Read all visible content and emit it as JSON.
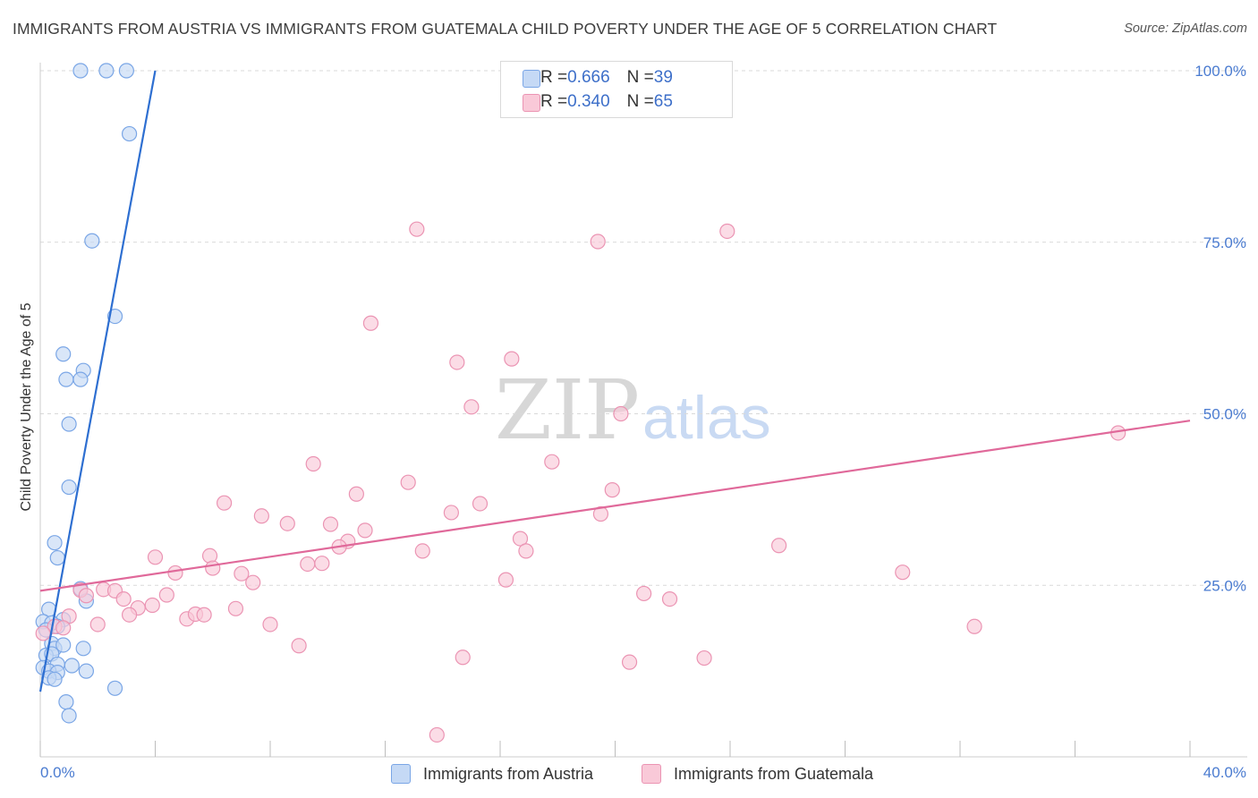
{
  "title": "IMMIGRANTS FROM AUSTRIA VS IMMIGRANTS FROM GUATEMALA CHILD POVERTY UNDER THE AGE OF 5 CORRELATION CHART",
  "source": "Source: ZipAtlas.com",
  "watermark": {
    "zip": "ZIP",
    "atlas": "atlas"
  },
  "legend": {
    "austria": {
      "r_label": "R = ",
      "r_value": "0.666",
      "n_label": "N = ",
      "n_value": "39"
    },
    "guatemala": {
      "r_label": "R = ",
      "r_value": "0.340",
      "n_label": "N = ",
      "n_value": "65"
    }
  },
  "colors": {
    "austria_fill": "#c5d9f5",
    "austria_stroke": "#7aa6e6",
    "austria_line": "#2e6fd1",
    "guatemala_fill": "#f9c9d8",
    "guatemala_stroke": "#eb94b3",
    "guatemala_line": "#e0699a",
    "tick": "#4a7bd0",
    "grid": "#d9d9d9"
  },
  "chart_data": {
    "type": "scatter",
    "title": "IMMIGRANTS FROM AUSTRIA VS IMMIGRANTS FROM GUATEMALA CHILD POVERTY UNDER THE AGE OF 5 CORRELATION CHART",
    "xlabel": "",
    "ylabel": "Child Poverty Under the Age of 5",
    "xlim": [
      0,
      40
    ],
    "ylim": [
      0,
      102
    ],
    "x_tick_labels": [
      "0.0%",
      "40.0%"
    ],
    "y_ticks": [
      25,
      50,
      75,
      100
    ],
    "y_tick_labels": [
      "25.0%",
      "50.0%",
      "75.0%",
      "100.0%"
    ],
    "grid": true,
    "series": [
      {
        "name": "Immigrants from Austria",
        "trendline": [
          [
            0,
            9.5
          ],
          [
            4,
            100
          ]
        ],
        "points": [
          [
            1.4,
            100
          ],
          [
            2.3,
            100
          ],
          [
            3.0,
            100
          ],
          [
            3.1,
            90.8
          ],
          [
            1.8,
            75.2
          ],
          [
            2.6,
            64.2
          ],
          [
            0.8,
            58.7
          ],
          [
            1.5,
            56.3
          ],
          [
            0.9,
            55.0
          ],
          [
            1.4,
            55.0
          ],
          [
            1.0,
            48.5
          ],
          [
            1.0,
            39.3
          ],
          [
            0.5,
            31.2
          ],
          [
            0.6,
            29.0
          ],
          [
            1.4,
            24.5
          ],
          [
            1.6,
            22.7
          ],
          [
            0.3,
            21.5
          ],
          [
            0.8,
            20.0
          ],
          [
            0.1,
            19.7
          ],
          [
            0.6,
            19.0
          ],
          [
            0.4,
            19.5
          ],
          [
            0.2,
            18.5
          ],
          [
            0.4,
            16.5
          ],
          [
            0.5,
            15.8
          ],
          [
            0.8,
            16.3
          ],
          [
            1.5,
            15.8
          ],
          [
            0.2,
            14.8
          ],
          [
            0.4,
            15.0
          ],
          [
            0.6,
            13.5
          ],
          [
            1.1,
            13.3
          ],
          [
            0.1,
            13.0
          ],
          [
            0.3,
            12.5
          ],
          [
            0.6,
            12.3
          ],
          [
            1.6,
            12.5
          ],
          [
            0.3,
            11.5
          ],
          [
            0.5,
            11.3
          ],
          [
            2.6,
            10.0
          ],
          [
            0.9,
            8.0
          ],
          [
            1.0,
            6.0
          ]
        ]
      },
      {
        "name": "Immigrants from Guatemala",
        "trendline": [
          [
            0,
            24.2
          ],
          [
            40,
            49.0
          ]
        ],
        "points": [
          [
            13.1,
            76.9
          ],
          [
            19.4,
            75.1
          ],
          [
            23.9,
            76.6
          ],
          [
            11.5,
            63.2
          ],
          [
            14.5,
            57.5
          ],
          [
            16.4,
            58.0
          ],
          [
            15.0,
            51.0
          ],
          [
            20.2,
            50.0
          ],
          [
            37.5,
            47.2
          ],
          [
            9.5,
            42.7
          ],
          [
            17.8,
            43.0
          ],
          [
            12.8,
            40.0
          ],
          [
            11.0,
            38.3
          ],
          [
            19.9,
            38.9
          ],
          [
            6.4,
            37.0
          ],
          [
            15.3,
            36.9
          ],
          [
            14.3,
            35.6
          ],
          [
            19.5,
            35.4
          ],
          [
            7.7,
            35.1
          ],
          [
            8.6,
            34.0
          ],
          [
            10.1,
            33.9
          ],
          [
            11.3,
            33.0
          ],
          [
            10.7,
            31.4
          ],
          [
            16.7,
            31.8
          ],
          [
            10.4,
            30.6
          ],
          [
            13.3,
            30.0
          ],
          [
            16.9,
            30.0
          ],
          [
            25.7,
            30.8
          ],
          [
            4.0,
            29.1
          ],
          [
            5.9,
            29.3
          ],
          [
            6.0,
            27.5
          ],
          [
            9.3,
            28.1
          ],
          [
            9.8,
            28.2
          ],
          [
            4.7,
            26.8
          ],
          [
            7.0,
            26.7
          ],
          [
            30.0,
            26.9
          ],
          [
            7.4,
            25.4
          ],
          [
            16.2,
            25.8
          ],
          [
            1.4,
            24.3
          ],
          [
            2.2,
            24.4
          ],
          [
            2.6,
            24.2
          ],
          [
            4.4,
            23.6
          ],
          [
            1.6,
            23.5
          ],
          [
            2.9,
            23.0
          ],
          [
            21.0,
            23.8
          ],
          [
            21.9,
            23.0
          ],
          [
            3.9,
            22.1
          ],
          [
            3.4,
            21.7
          ],
          [
            6.8,
            21.6
          ],
          [
            3.1,
            20.7
          ],
          [
            5.1,
            20.1
          ],
          [
            5.4,
            20.8
          ],
          [
            5.7,
            20.7
          ],
          [
            1.0,
            20.5
          ],
          [
            2.0,
            19.3
          ],
          [
            8.0,
            19.3
          ],
          [
            32.5,
            19.0
          ],
          [
            0.5,
            19.0
          ],
          [
            0.8,
            18.8
          ],
          [
            0.1,
            18.0
          ],
          [
            9.0,
            16.2
          ],
          [
            14.7,
            14.5
          ],
          [
            20.5,
            13.8
          ],
          [
            23.1,
            14.4
          ],
          [
            13.8,
            3.2
          ]
        ]
      }
    ]
  },
  "bottom_legend": {
    "austria": "Immigrants from Austria",
    "guatemala": "Immigrants from Guatemala"
  }
}
